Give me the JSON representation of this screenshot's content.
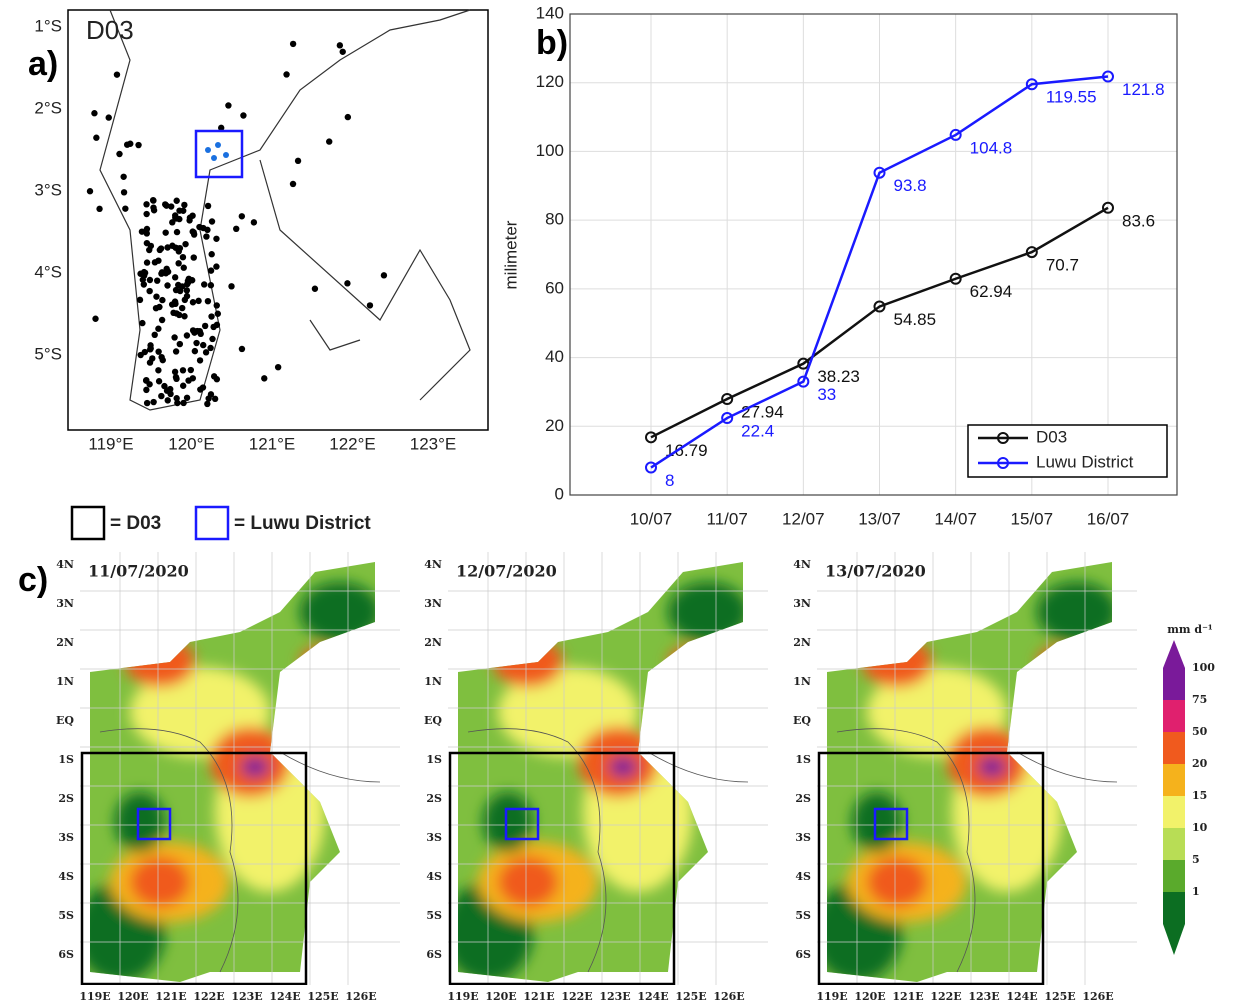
{
  "chart_data": {
    "type": "line",
    "panel_label": "b)",
    "y_label": "milimeter",
    "categories": [
      "10/07",
      "11/07",
      "12/07",
      "13/07",
      "14/07",
      "15/07",
      "16/07"
    ],
    "series": [
      {
        "name": "D03",
        "color": "#111111",
        "values": [
          16.79,
          27.94,
          38.23,
          54.85,
          62.94,
          70.7,
          83.6
        ]
      },
      {
        "name": "Luwu District",
        "color": "#1a1aff",
        "values": [
          8,
          22.4,
          33,
          93.8,
          104.8,
          119.55,
          121.8
        ]
      }
    ],
    "ylim": [
      0,
      140
    ],
    "yticks": [
      0,
      20,
      40,
      60,
      80,
      100,
      120,
      140
    ],
    "grid": true,
    "legend": "lower right"
  },
  "map_a": {
    "panel_label": "a)",
    "domain_label": "D03",
    "lat_labels": [
      "1°S",
      "2°S",
      "3°S",
      "4°S",
      "5°S"
    ],
    "lon_labels": [
      "119°E",
      "120°E",
      "121°E",
      "122°E",
      "123°E"
    ]
  },
  "box_legend": [
    "= D03",
    "= Luwu District"
  ],
  "maps_c": {
    "panel_label": "c)",
    "dates": [
      "11/07/2020",
      "12/07/2020",
      "13/07/2020"
    ],
    "lat_labels": [
      "4N",
      "3N",
      "2N",
      "1N",
      "EQ",
      "1S",
      "2S",
      "3S",
      "4S",
      "5S",
      "6S"
    ],
    "lon_labels": [
      "119E",
      "120E",
      "121E",
      "122E",
      "123E",
      "124E",
      "125E",
      "126E"
    ],
    "colorbar": {
      "unit": "mm d⁻¹",
      "levels": [
        100,
        75,
        50,
        20,
        15,
        10,
        5,
        1
      ]
    }
  }
}
